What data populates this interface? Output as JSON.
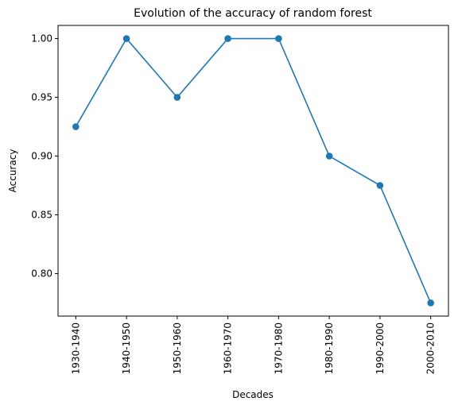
{
  "chart_data": {
    "type": "line",
    "title": "Evolution of the accuracy of random forest",
    "xlabel": "Decades",
    "ylabel": "Accuracy",
    "categories": [
      "1930-1940",
      "1940-1950",
      "1950-1960",
      "1960-1970",
      "1970-1980",
      "1980-1990",
      "1990-2000",
      "2000-2010"
    ],
    "series": [
      {
        "values": [
          0.925,
          1.0,
          0.95,
          1.0,
          1.0,
          0.9,
          0.875,
          0.775
        ]
      }
    ],
    "yticks": [
      "0.80",
      "0.85",
      "0.90",
      "0.95",
      "1.00"
    ],
    "ylim": [
      0.7638,
      1.0112
    ],
    "grid": false,
    "legend": "none",
    "color": "#1f77b4",
    "markers": "circle"
  }
}
